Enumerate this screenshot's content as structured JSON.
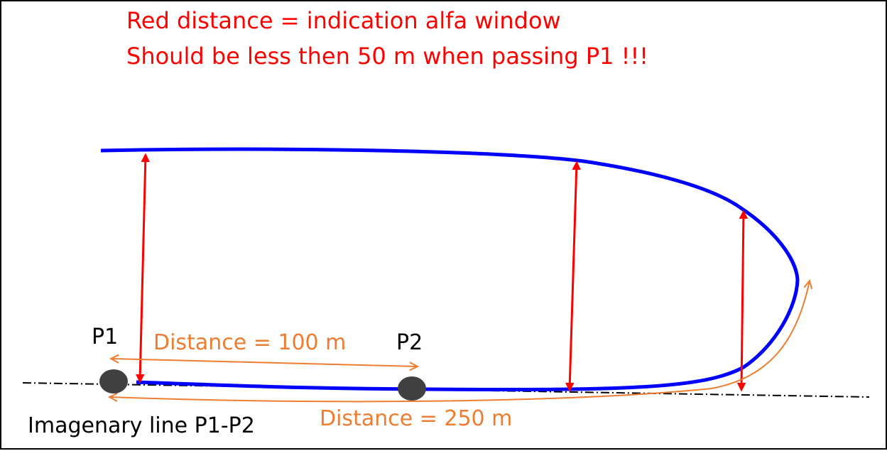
{
  "title_lines": [
    "Red distance = indication alfa window",
    "Should be less then 50 m when passing P1 !!!"
  ],
  "points": {
    "p1": "P1",
    "p2": "P2"
  },
  "distances": {
    "p1_to_p2": "Distance = 100 m",
    "along_path": "Distance = 250 m"
  },
  "line_label": "Imagenary line P1-P2",
  "colors": {
    "path": "#0000ff",
    "window_arrows": "#ff0000",
    "distance": "#ed7d31",
    "points": "#404040",
    "line": "#000000"
  }
}
